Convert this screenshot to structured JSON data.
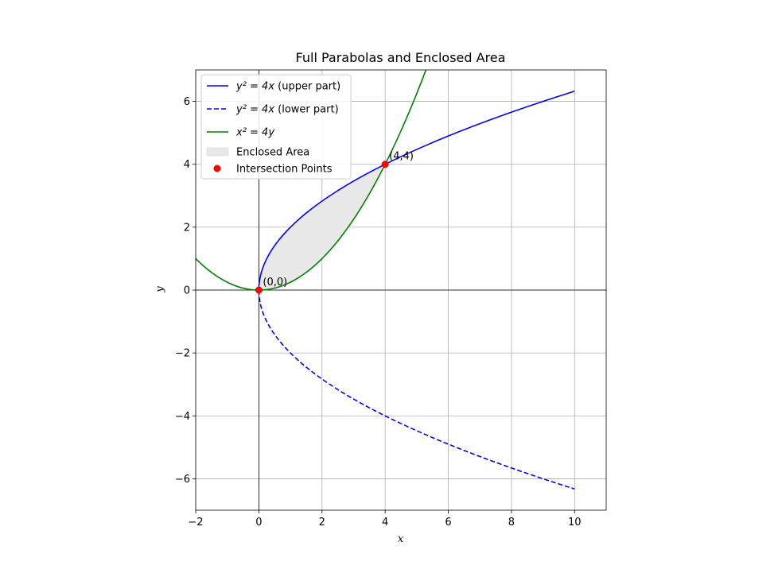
{
  "chart_data": {
    "type": "line",
    "title": "Full Parabolas and Enclosed Area",
    "xlabel": "x",
    "ylabel": "y",
    "xlim": [
      -2,
      11
    ],
    "ylim": [
      -7,
      7
    ],
    "xticks": [
      -2,
      0,
      2,
      4,
      6,
      8,
      10
    ],
    "yticks": [
      -6,
      -4,
      -2,
      0,
      2,
      4,
      6
    ],
    "xtick_labels": [
      "−2",
      "0",
      "2",
      "4",
      "6",
      "8",
      "10"
    ],
    "ytick_labels": [
      "−6",
      "−4",
      "−2",
      "0",
      "2",
      "4",
      "6"
    ],
    "grid": true,
    "legend_position": "top-left",
    "series": [
      {
        "name": "y² = 4x (upper part)",
        "legend_main": "y² = 4x",
        "legend_suffix": " (upper part)",
        "kind": "line",
        "color": "#0000ff",
        "dash": "solid",
        "function": "y = 2√x",
        "x_range": [
          0,
          10
        ],
        "sample_points": [
          [
            0,
            0
          ],
          [
            1,
            2
          ],
          [
            4,
            4
          ],
          [
            9,
            6
          ],
          [
            10,
            6.32
          ]
        ]
      },
      {
        "name": "y² = 4x (lower part)",
        "legend_main": "y² = 4x",
        "legend_suffix": " (lower part)",
        "kind": "line",
        "color": "#0000ff",
        "dash": "dashed",
        "function": "y = −2√x",
        "x_range": [
          0,
          10
        ],
        "sample_points": [
          [
            0,
            0
          ],
          [
            1,
            -2
          ],
          [
            4,
            -4
          ],
          [
            9,
            -6
          ],
          [
            10,
            -6.32
          ]
        ]
      },
      {
        "name": "x² = 4y",
        "legend_main": "x² = 4y",
        "legend_suffix": "",
        "kind": "line",
        "color": "#008000",
        "dash": "solid",
        "function": "y = x²/4",
        "x_range": [
          -2,
          5.3
        ],
        "sample_points": [
          [
            -2,
            1
          ],
          [
            0,
            0
          ],
          [
            2,
            1
          ],
          [
            4,
            4
          ],
          [
            5.3,
            7.02
          ]
        ]
      },
      {
        "name": "Enclosed Area",
        "legend_main": "Enclosed Area",
        "legend_suffix": "",
        "kind": "fill",
        "color": "#e8e8e8",
        "between": [
          "y = 2√x",
          "y = x²/4"
        ],
        "x_range": [
          0,
          4
        ]
      },
      {
        "name": "Intersection Points",
        "legend_main": "Intersection Points",
        "legend_suffix": "",
        "kind": "scatter",
        "color": "#ff0000",
        "points": [
          [
            0,
            0
          ],
          [
            4,
            4
          ]
        ]
      }
    ],
    "annotations": [
      {
        "text": "(0,0)",
        "x": 0,
        "y": 0
      },
      {
        "text": "(4,4)",
        "x": 4,
        "y": 4
      }
    ]
  }
}
